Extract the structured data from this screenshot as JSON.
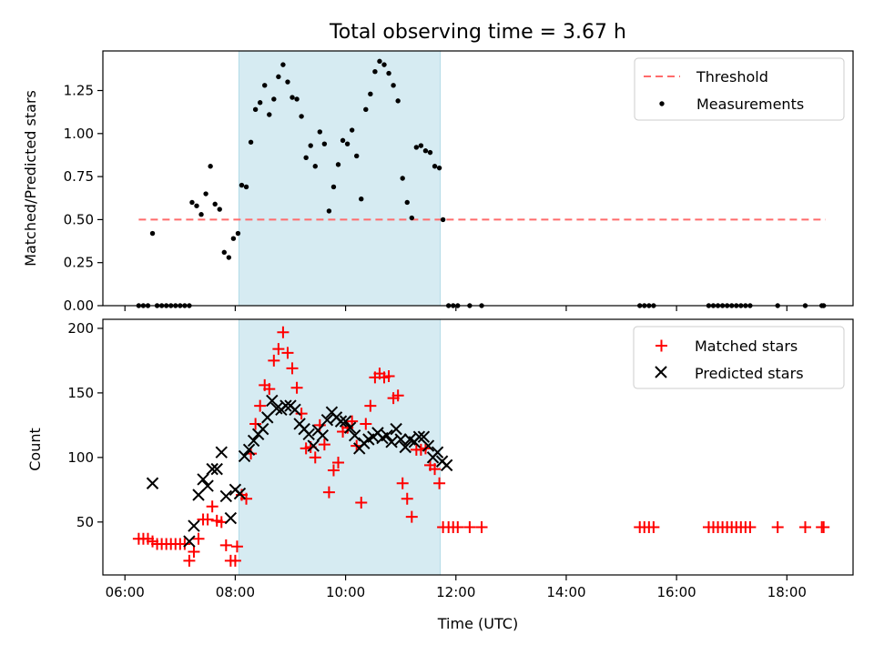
{
  "figure_title": "Total observing time = 3.67 h",
  "chart_data": [
    {
      "type": "scatter",
      "ylabel": "Matched/Predicted stars",
      "xlim": [
        "05:36",
        "19:12"
      ],
      "ylim": [
        0,
        1.48
      ],
      "ytick_labels": [
        "0.00",
        "0.25",
        "0.50",
        "0.75",
        "1.00",
        "1.25"
      ],
      "grid": false,
      "legend": "top-right",
      "highlight_span": [
        "08:04",
        "11:43"
      ],
      "colors": {
        "threshold": "#ff6b6b",
        "measurements": "#000000",
        "span": "#add8e6"
      },
      "threshold": {
        "name": "Threshold",
        "value": 0.5,
        "x_range": [
          "06:15",
          "18:42"
        ]
      },
      "series": [
        {
          "name": "Measurements",
          "points": [
            [
              "06:15",
              0
            ],
            [
              "06:20",
              0
            ],
            [
              "06:25",
              0
            ],
            [
              "06:30",
              0.42
            ],
            [
              "06:35",
              0
            ],
            [
              "06:40",
              0
            ],
            [
              "06:45",
              0
            ],
            [
              "06:50",
              0
            ],
            [
              "06:55",
              0
            ],
            [
              "07:00",
              0
            ],
            [
              "07:05",
              0
            ],
            [
              "07:10",
              0
            ],
            [
              "07:13",
              0.6
            ],
            [
              "07:18",
              0.58
            ],
            [
              "07:23",
              0.53
            ],
            [
              "07:28",
              0.65
            ],
            [
              "07:33",
              0.81
            ],
            [
              "07:38",
              0.59
            ],
            [
              "07:43",
              0.56
            ],
            [
              "07:48",
              0.31
            ],
            [
              "07:53",
              0.28
            ],
            [
              "07:58",
              0.39
            ],
            [
              "08:03",
              0.42
            ],
            [
              "08:07",
              0.7
            ],
            [
              "08:12",
              0.69
            ],
            [
              "08:17",
              0.95
            ],
            [
              "08:22",
              1.14
            ],
            [
              "08:27",
              1.18
            ],
            [
              "08:32",
              1.28
            ],
            [
              "08:37",
              1.11
            ],
            [
              "08:42",
              1.2
            ],
            [
              "08:47",
              1.33
            ],
            [
              "08:52",
              1.4
            ],
            [
              "08:57",
              1.3
            ],
            [
              "09:02",
              1.21
            ],
            [
              "09:07",
              1.2
            ],
            [
              "09:12",
              1.1
            ],
            [
              "09:17",
              0.86
            ],
            [
              "09:22",
              0.93
            ],
            [
              "09:27",
              0.81
            ],
            [
              "09:32",
              1.01
            ],
            [
              "09:37",
              0.94
            ],
            [
              "09:42",
              0.55
            ],
            [
              "09:47",
              0.69
            ],
            [
              "09:52",
              0.82
            ],
            [
              "09:57",
              0.96
            ],
            [
              "10:02",
              0.94
            ],
            [
              "10:07",
              1.02
            ],
            [
              "10:12",
              0.87
            ],
            [
              "10:17",
              0.62
            ],
            [
              "10:22",
              1.14
            ],
            [
              "10:27",
              1.23
            ],
            [
              "10:32",
              1.36
            ],
            [
              "10:37",
              1.42
            ],
            [
              "10:42",
              1.4
            ],
            [
              "10:47",
              1.35
            ],
            [
              "10:52",
              1.28
            ],
            [
              "10:57",
              1.19
            ],
            [
              "11:02",
              0.74
            ],
            [
              "11:07",
              0.6
            ],
            [
              "11:12",
              0.51
            ],
            [
              "11:17",
              0.92
            ],
            [
              "11:22",
              0.93
            ],
            [
              "11:27",
              0.9
            ],
            [
              "11:32",
              0.89
            ],
            [
              "11:37",
              0.81
            ],
            [
              "11:42",
              0.8
            ],
            [
              "11:46",
              0.5
            ],
            [
              "11:52",
              0
            ],
            [
              "11:57",
              0
            ],
            [
              "12:02",
              0
            ],
            [
              "12:15",
              0
            ],
            [
              "12:28",
              0
            ],
            [
              "15:20",
              0
            ],
            [
              "15:25",
              0
            ],
            [
              "15:30",
              0
            ],
            [
              "15:35",
              0
            ],
            [
              "16:35",
              0
            ],
            [
              "16:40",
              0
            ],
            [
              "16:45",
              0
            ],
            [
              "16:50",
              0
            ],
            [
              "16:55",
              0
            ],
            [
              "17:00",
              0
            ],
            [
              "17:05",
              0
            ],
            [
              "17:10",
              0
            ],
            [
              "17:15",
              0
            ],
            [
              "17:20",
              0
            ],
            [
              "17:50",
              0
            ],
            [
              "18:20",
              0
            ],
            [
              "18:38",
              0
            ],
            [
              "18:40",
              0
            ]
          ]
        }
      ]
    },
    {
      "type": "scatter",
      "xlabel": "Time (UTC)",
      "ylabel": "Count",
      "xlim": [
        "05:36",
        "19:12"
      ],
      "ylim": [
        9,
        207
      ],
      "xtick_labels": [
        "06:00",
        "08:00",
        "10:00",
        "12:00",
        "14:00",
        "16:00",
        "18:00"
      ],
      "ytick_labels": [
        "50",
        "100",
        "150",
        "200"
      ],
      "grid": false,
      "legend": "top-right",
      "highlight_span": [
        "08:04",
        "11:43"
      ],
      "colors": {
        "matched": "#ff0000",
        "predicted": "#000000",
        "span": "#add8e6"
      },
      "series": [
        {
          "name": "Matched stars",
          "marker": "plus",
          "points": [
            [
              "06:15",
              37
            ],
            [
              "06:20",
              37
            ],
            [
              "06:25",
              37
            ],
            [
              "06:30",
              35
            ],
            [
              "06:35",
              33
            ],
            [
              "06:40",
              33
            ],
            [
              "06:45",
              33
            ],
            [
              "06:50",
              33
            ],
            [
              "06:55",
              33
            ],
            [
              "07:00",
              33
            ],
            [
              "07:05",
              33
            ],
            [
              "07:10",
              20
            ],
            [
              "07:15",
              27
            ],
            [
              "07:20",
              37
            ],
            [
              "07:25",
              52
            ],
            [
              "07:30",
              52
            ],
            [
              "07:35",
              62
            ],
            [
              "07:40",
              51
            ],
            [
              "07:45",
              50
            ],
            [
              "07:50",
              32
            ],
            [
              "07:55",
              20
            ],
            [
              "08:00",
              20
            ],
            [
              "08:02",
              31
            ],
            [
              "08:07",
              71
            ],
            [
              "08:12",
              68
            ],
            [
              "08:17",
              103
            ],
            [
              "08:22",
              126
            ],
            [
              "08:27",
              140
            ],
            [
              "08:32",
              156
            ],
            [
              "08:37",
              153
            ],
            [
              "08:42",
              175
            ],
            [
              "08:47",
              184
            ],
            [
              "08:52",
              197
            ],
            [
              "08:57",
              181
            ],
            [
              "09:02",
              169
            ],
            [
              "09:07",
              154
            ],
            [
              "09:12",
              134
            ],
            [
              "09:17",
              107
            ],
            [
              "09:22",
              108
            ],
            [
              "09:27",
              100
            ],
            [
              "09:32",
              125
            ],
            [
              "09:37",
              110
            ],
            [
              "09:42",
              73
            ],
            [
              "09:47",
              90
            ],
            [
              "09:52",
              96
            ],
            [
              "09:57",
              120
            ],
            [
              "10:02",
              123
            ],
            [
              "10:07",
              128
            ],
            [
              "10:12",
              109
            ],
            [
              "10:17",
              65
            ],
            [
              "10:22",
              126
            ],
            [
              "10:27",
              140
            ],
            [
              "10:32",
              162
            ],
            [
              "10:37",
              165
            ],
            [
              "10:42",
              162
            ],
            [
              "10:47",
              163
            ],
            [
              "10:52",
              146
            ],
            [
              "10:57",
              148
            ],
            [
              "11:02",
              80
            ],
            [
              "11:07",
              68
            ],
            [
              "11:12",
              54
            ],
            [
              "11:17",
              106
            ],
            [
              "11:22",
              106
            ],
            [
              "11:27",
              107
            ],
            [
              "11:32",
              94
            ],
            [
              "11:37",
              91
            ],
            [
              "11:42",
              80
            ],
            [
              "11:46",
              46
            ],
            [
              "11:52",
              46
            ],
            [
              "11:57",
              46
            ],
            [
              "12:02",
              46
            ],
            [
              "12:15",
              46
            ],
            [
              "12:28",
              46
            ],
            [
              "15:20",
              46
            ],
            [
              "15:25",
              46
            ],
            [
              "15:30",
              46
            ],
            [
              "15:35",
              46
            ],
            [
              "16:35",
              46
            ],
            [
              "16:40",
              46
            ],
            [
              "16:45",
              46
            ],
            [
              "16:50",
              46
            ],
            [
              "16:55",
              46
            ],
            [
              "17:00",
              46
            ],
            [
              "17:05",
              46
            ],
            [
              "17:10",
              46
            ],
            [
              "17:15",
              46
            ],
            [
              "17:20",
              46
            ],
            [
              "17:50",
              46
            ],
            [
              "18:20",
              46
            ],
            [
              "18:38",
              46
            ],
            [
              "18:40",
              46
            ]
          ]
        },
        {
          "name": "Predicted stars",
          "marker": "x",
          "points": [
            [
              "06:30",
              80
            ],
            [
              "07:10",
              35
            ],
            [
              "07:15",
              47
            ],
            [
              "07:20",
              71
            ],
            [
              "07:25",
              83
            ],
            [
              "07:30",
              78
            ],
            [
              "07:35",
              91
            ],
            [
              "07:40",
              91
            ],
            [
              "07:45",
              104
            ],
            [
              "07:50",
              70
            ],
            [
              "07:55",
              53
            ],
            [
              "08:00",
              75
            ],
            [
              "08:05",
              72
            ],
            [
              "08:10",
              101
            ],
            [
              "08:15",
              106
            ],
            [
              "08:20",
              113
            ],
            [
              "08:25",
              118
            ],
            [
              "08:30",
              122
            ],
            [
              "08:35",
              131
            ],
            [
              "08:40",
              144
            ],
            [
              "08:45",
              138
            ],
            [
              "08:50",
              137
            ],
            [
              "08:55",
              140
            ],
            [
              "09:00",
              140
            ],
            [
              "09:05",
              137
            ],
            [
              "09:10",
              126
            ],
            [
              "09:15",
              122
            ],
            [
              "09:20",
              118
            ],
            [
              "09:25",
              109
            ],
            [
              "09:30",
              121
            ],
            [
              "09:35",
              117
            ],
            [
              "09:40",
              129
            ],
            [
              "09:45",
              135
            ],
            [
              "09:50",
              131
            ],
            [
              "09:55",
              128
            ],
            [
              "10:00",
              128
            ],
            [
              "10:05",
              123
            ],
            [
              "10:10",
              117
            ],
            [
              "10:15",
              107
            ],
            [
              "10:20",
              111
            ],
            [
              "10:25",
              114
            ],
            [
              "10:30",
              116
            ],
            [
              "10:35",
              119
            ],
            [
              "10:40",
              115
            ],
            [
              "10:45",
              117
            ],
            [
              "10:50",
              112
            ],
            [
              "10:55",
              122
            ],
            [
              "11:00",
              114
            ],
            [
              "11:05",
              108
            ],
            [
              "11:10",
              114
            ],
            [
              "11:15",
              112
            ],
            [
              "11:20",
              116
            ],
            [
              "11:25",
              116
            ],
            [
              "11:30",
              109
            ],
            [
              "11:35",
              100
            ],
            [
              "11:40",
              104
            ],
            [
              "11:45",
              97
            ],
            [
              "11:50",
              94
            ]
          ]
        }
      ]
    }
  ]
}
